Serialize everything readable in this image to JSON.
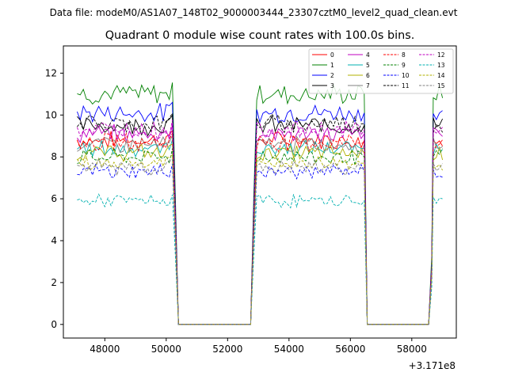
{
  "chart_data": {
    "type": "line",
    "suptitle": "Data file: modeM0/AS1A07_148T02_9000003444_23307cztM0_level2_quad_clean.evt",
    "title": "Quadrant 0 module wise count rates with 100.0s bins.",
    "xlabel": "",
    "ylabel": "",
    "x_offset_label": "+3.171e8",
    "xlim": [
      46650,
      59450
    ],
    "ylim": [
      -0.65,
      13.3
    ],
    "xticks": [
      48000,
      50000,
      52000,
      54000,
      56000,
      58000
    ],
    "yticks": [
      0,
      2,
      4,
      6,
      8,
      10,
      12
    ],
    "legend_position": "upper right",
    "gti": [
      [
        47100,
        50100
      ],
      [
        52950,
        56350
      ],
      [
        58700,
        59050
      ]
    ],
    "gaps": [
      [
        50400,
        52750
      ],
      [
        56550,
        58550
      ]
    ],
    "series": [
      {
        "name": "0",
        "color": "#ff0000",
        "dash": "solid",
        "level": 8.8
      },
      {
        "name": "1",
        "color": "#008000",
        "dash": "solid",
        "level": 11.0
      },
      {
        "name": "2",
        "color": "#0000ff",
        "dash": "solid",
        "level": 10.1
      },
      {
        "name": "3",
        "color": "#000000",
        "dash": "solid",
        "level": 9.5
      },
      {
        "name": "4",
        "color": "#c000c0",
        "dash": "solid",
        "level": 9.1
      },
      {
        "name": "5",
        "color": "#00b0b0",
        "dash": "solid",
        "level": 8.4
      },
      {
        "name": "6",
        "color": "#b0b000",
        "dash": "solid",
        "level": 8.2
      },
      {
        "name": "7",
        "color": "#808080",
        "dash": "solid",
        "level": 8.6
      },
      {
        "name": "8",
        "color": "#ff0000",
        "dash": "dashed",
        "level": 8.7
      },
      {
        "name": "9",
        "color": "#008000",
        "dash": "dashed",
        "level": 8.0
      },
      {
        "name": "10",
        "color": "#0000ff",
        "dash": "dashed",
        "level": 7.3
      },
      {
        "name": "11",
        "color": "#000000",
        "dash": "dashed",
        "level": 9.6
      },
      {
        "name": "12",
        "color": "#c000c0",
        "dash": "dashed",
        "level": 9.3
      },
      {
        "name": "13",
        "color": "#00b0b0",
        "dash": "dashed",
        "level": 5.9
      },
      {
        "name": "14",
        "color": "#b0b000",
        "dash": "dashed",
        "level": 7.7
      },
      {
        "name": "15",
        "color": "#808080",
        "dash": "dashed",
        "level": 7.5
      }
    ]
  }
}
